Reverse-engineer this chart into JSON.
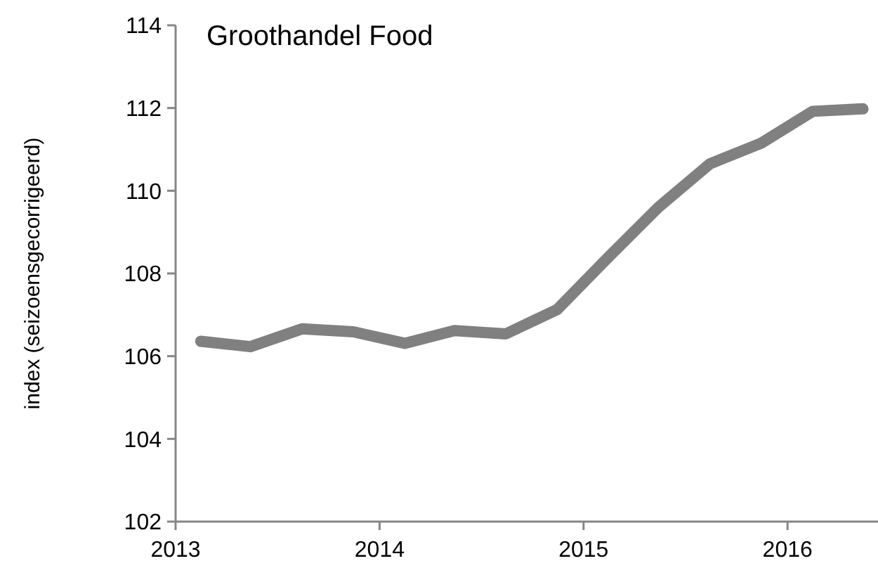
{
  "chart_data": {
    "type": "line",
    "title": "Groothandel Food",
    "ylabel": "index (seizoensgecorrigeerd)",
    "x": [
      "2013-02-15",
      "2013-05-15",
      "2013-08-15",
      "2013-11-15",
      "2014-02-15",
      "2014-05-15",
      "2014-08-15",
      "2014-11-15",
      "2015-02-15",
      "2015-05-15",
      "2015-08-15",
      "2015-11-15",
      "2016-02-15",
      "2016-05-15"
    ],
    "series": [
      {
        "color": "#808080",
        "values": [
          106.36,
          106.23,
          106.66,
          106.59,
          106.31,
          106.62,
          106.54,
          107.13,
          108.4,
          109.6,
          110.65,
          111.15,
          111.92,
          111.98
        ]
      }
    ],
    "xlim": [
      "2013-01-01",
      "2016-07-01"
    ],
    "xticks": [
      {
        "value": "2013-01-01",
        "label": "2013"
      },
      {
        "value": "2014-01-01",
        "label": "2014"
      },
      {
        "value": "2015-01-01",
        "label": "2015"
      },
      {
        "value": "2016-01-01",
        "label": "2016"
      }
    ],
    "ylim": [
      102,
      114
    ],
    "yticks": [
      102,
      104,
      106,
      108,
      110,
      112,
      114
    ],
    "grid": false,
    "marker": "none",
    "line_style": "solid"
  }
}
